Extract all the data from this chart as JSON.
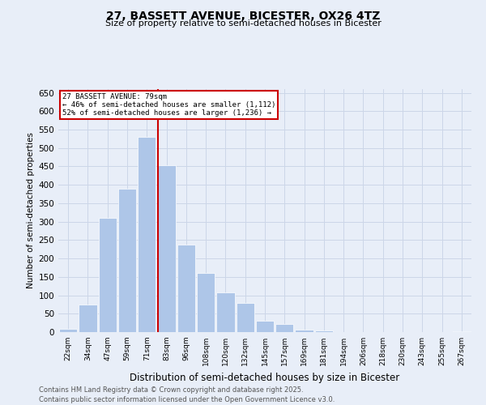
{
  "title_line1": "27, BASSETT AVENUE, BICESTER, OX26 4TZ",
  "title_line2": "Size of property relative to semi-detached houses in Bicester",
  "xlabel": "Distribution of semi-detached houses by size in Bicester",
  "ylabel": "Number of semi-detached properties",
  "bin_labels": [
    "22sqm",
    "34sqm",
    "47sqm",
    "59sqm",
    "71sqm",
    "83sqm",
    "96sqm",
    "108sqm",
    "120sqm",
    "132sqm",
    "145sqm",
    "157sqm",
    "169sqm",
    "181sqm",
    "194sqm",
    "206sqm",
    "218sqm",
    "230sqm",
    "243sqm",
    "255sqm",
    "267sqm"
  ],
  "bar_heights": [
    8,
    75,
    310,
    390,
    530,
    453,
    238,
    160,
    108,
    79,
    30,
    22,
    7,
    4,
    0,
    0,
    0,
    0,
    0,
    0,
    3
  ],
  "bar_color": "#aec6e8",
  "grid_color": "#ccd6e8",
  "background_color": "#e8eef8",
  "annotation_title": "27 BASSETT AVENUE: 79sqm",
  "annotation_line1": "← 46% of semi-detached houses are smaller (1,112)",
  "annotation_line2": "52% of semi-detached houses are larger (1,236) →",
  "annotation_box_color": "#ffffff",
  "annotation_border_color": "#cc0000",
  "vline_color": "#cc0000",
  "ylim": [
    0,
    660
  ],
  "yticks": [
    0,
    50,
    100,
    150,
    200,
    250,
    300,
    350,
    400,
    450,
    500,
    550,
    600,
    650
  ],
  "vline_x": 4.58,
  "footnote_line1": "Contains HM Land Registry data © Crown copyright and database right 2025.",
  "footnote_line2": "Contains public sector information licensed under the Open Government Licence v3.0."
}
